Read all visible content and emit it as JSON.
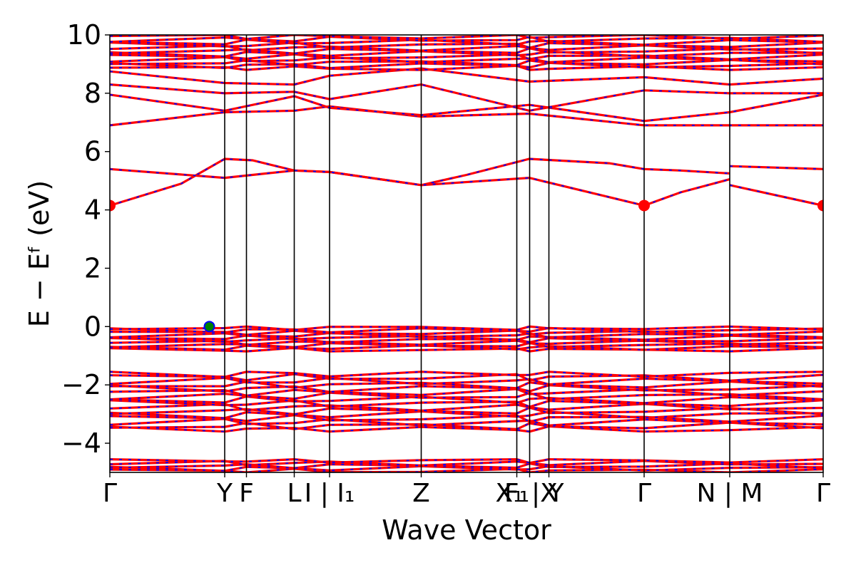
{
  "chart_data": {
    "type": "line",
    "title": "",
    "xlabel": "Wave Vector",
    "ylabel": "E − Eᶠ (eV)",
    "ylim": [
      -5,
      10
    ],
    "yticks": [
      -4,
      -2,
      0,
      2,
      4,
      6,
      8,
      10
    ],
    "ytick_labels": [
      "−4",
      "−2",
      "0",
      "2",
      "4",
      "6",
      "8",
      "10"
    ],
    "xlim": [
      0,
      1
    ],
    "kpoints": [
      {
        "pos": 0.0,
        "label": "Γ"
      },
      {
        "pos": 0.161,
        "label": "Y"
      },
      {
        "pos": 0.1915,
        "label": "F"
      },
      {
        "pos": 0.2585,
        "label": "L"
      },
      {
        "pos": 0.308,
        "label": "I | I₁"
      },
      {
        "pos": 0.4365,
        "label": "Z"
      },
      {
        "pos": 0.5705,
        "label": "F₁"
      },
      {
        "pos": 0.5885,
        "label": "X₁ | Y"
      },
      {
        "pos": 0.6155,
        "label": "X"
      },
      {
        "pos": 0.749,
        "label": "Γ"
      },
      {
        "pos": 0.869,
        "label": "N | M"
      },
      {
        "pos": 1.0,
        "label": "Γ"
      }
    ],
    "series": [
      {
        "color": "#ff0000",
        "style": "solid"
      },
      {
        "color": "#0000ff",
        "style": "dashed"
      }
    ],
    "bands_conduction": [
      {
        "x": [
          0,
          0.1,
          0.161,
          0.2,
          0.2585,
          0.308,
          0.4365,
          0.5,
          0.588,
          0.7,
          0.749,
          0.8,
          0.869
        ],
        "y": [
          4.15,
          4.9,
          5.75,
          5.7,
          5.35,
          5.3,
          4.85,
          5.2,
          5.75,
          5.6,
          5.4,
          5.35,
          5.25
        ]
      },
      {
        "x": [
          0,
          0.161,
          0.2585,
          0.308,
          0.4365,
          0.588,
          0.749
        ],
        "y": [
          5.4,
          5.1,
          5.35,
          5.3,
          4.85,
          5.1,
          4.15
        ]
      },
      {
        "x": [
          0.749,
          0.8,
          0.869
        ],
        "y": [
          4.15,
          4.6,
          5.05
        ]
      },
      {
        "x": [
          0.869,
          1.0
        ],
        "y": [
          5.5,
          5.4
        ]
      },
      {
        "x": [
          0.869,
          1.0
        ],
        "y": [
          4.85,
          4.15
        ]
      },
      {
        "x": [
          0,
          0.161,
          0.2585,
          0.308,
          0.4365,
          0.588,
          0.749,
          0.869,
          1.0
        ],
        "y": [
          6.9,
          7.35,
          7.4,
          7.55,
          7.2,
          7.3,
          6.9,
          6.9,
          6.9
        ]
      },
      {
        "x": [
          0,
          0.161,
          0.2585,
          0.308,
          0.4365,
          0.588,
          0.749,
          0.869,
          1.0
        ],
        "y": [
          7.95,
          7.4,
          7.9,
          7.5,
          7.25,
          7.6,
          7.05,
          7.35,
          7.95
        ]
      },
      {
        "x": [
          0,
          0.161,
          0.2585,
          0.308,
          0.4365,
          0.588,
          0.749,
          0.869,
          1.0
        ],
        "y": [
          8.3,
          8.0,
          8.05,
          7.8,
          8.3,
          7.4,
          8.1,
          8.0,
          8.0
        ]
      },
      {
        "x": [
          0,
          0.161,
          0.2585,
          0.308,
          0.4365,
          0.588,
          0.749,
          0.869,
          1.0
        ],
        "y": [
          8.75,
          8.35,
          8.3,
          8.6,
          8.85,
          8.4,
          8.55,
          8.3,
          8.5
        ]
      }
    ],
    "bands_high": {
      "y_min": 8.8,
      "y_max": 10.0,
      "count": 12
    },
    "bands_valence_top": {
      "y_min": -0.85,
      "y_max": 0.0,
      "count": 10
    },
    "bands_valence_mid": {
      "y_min": -3.6,
      "y_max": -1.55,
      "count": 16
    },
    "bands_valence_low": {
      "y_min": -5.0,
      "y_max": -4.55,
      "count": 5
    },
    "markers": [
      {
        "x": 0.0,
        "y": 4.15,
        "color": "#ff0000",
        "label": "CBM"
      },
      {
        "x": 0.749,
        "y": 4.15,
        "color": "#ff0000",
        "label": "CBM"
      },
      {
        "x": 1.0,
        "y": 4.15,
        "color": "#ff0000",
        "label": "CBM"
      },
      {
        "x": 0.1395,
        "y": 0.0,
        "color": "#008000",
        "label": "VBM"
      }
    ]
  }
}
